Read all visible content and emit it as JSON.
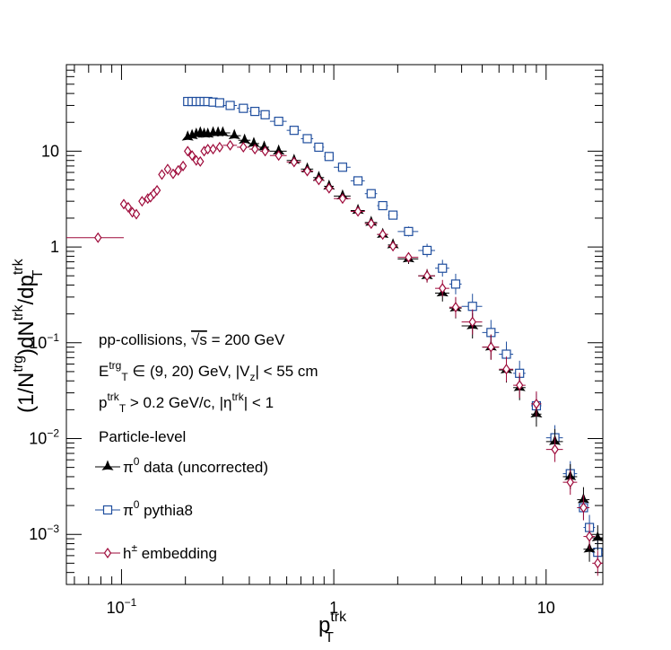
{
  "chart_data": {
    "type": "scatter",
    "xscale": "log",
    "yscale": "log",
    "xlim": [
      0.055,
      18.5
    ],
    "ylim": [
      0.0003,
      80
    ],
    "x_tick_labels": [
      {
        "value": 0.1,
        "base": "10",
        "exp": "−1"
      },
      {
        "value": 1,
        "text": "1"
      },
      {
        "value": 10,
        "text": "10"
      }
    ],
    "y_tick_labels": [
      {
        "value": 0.001,
        "base": "10",
        "exp": "−3"
      },
      {
        "value": 0.01,
        "base": "10",
        "exp": "−2"
      },
      {
        "value": 0.1,
        "base": "10",
        "exp": "−1"
      },
      {
        "value": 1,
        "text": "1"
      },
      {
        "value": 10,
        "text": "10"
      }
    ],
    "xlabel": {
      "base": "p",
      "sup": "trk",
      "sub": "T"
    },
    "ylabel": {
      "part1": "(1/N",
      "sup1": "trg",
      "part2": ")dN",
      "sup2": "trk",
      "part3": "/dp",
      "sup3": "trk",
      "sub3": "T"
    },
    "annotations": [
      {
        "segments": [
          {
            "t": "pp-collisions, "
          },
          {
            "t": "√s",
            "overline": true
          },
          {
            "t": " = 200 GeV"
          }
        ]
      },
      {
        "segments": [
          {
            "t": "E"
          },
          {
            "t": "trg",
            "sup": true
          },
          {
            "t": "T",
            "sub": true
          },
          {
            "t": " ∈ (9, 20) GeV, |V"
          },
          {
            "t": "z",
            "sub": true
          },
          {
            "t": "| < 55 cm"
          }
        ]
      },
      {
        "segments": [
          {
            "t": "p"
          },
          {
            "t": "trk",
            "sup": true
          },
          {
            "t": "T",
            "sub": true
          },
          {
            "t": " > 0.2 GeV/c, |η"
          },
          {
            "t": "trk",
            "sup": true
          },
          {
            "t": "| < 1"
          }
        ]
      },
      {
        "segments": [
          {
            "t": "Particle-level"
          }
        ]
      }
    ],
    "series": [
      {
        "name": "π0 data (uncorrected)",
        "legend": {
          "base": "π",
          "sup": "0",
          "rest": " data (uncorrected)"
        },
        "marker": "star",
        "color": "#000000",
        "x": [
          0.205,
          0.215,
          0.225,
          0.235,
          0.245,
          0.255,
          0.27,
          0.285,
          0.3,
          0.34,
          0.38,
          0.42,
          0.47,
          0.55,
          0.65,
          0.75,
          0.85,
          0.95,
          1.1,
          1.3,
          1.5,
          1.7,
          1.9,
          2.25,
          2.75,
          3.25,
          3.75,
          4.5,
          5.5,
          6.5,
          7.5,
          9.0,
          11.0,
          13.0,
          15.0,
          16.0,
          17.5
        ],
        "y": [
          14.0,
          14.5,
          15.0,
          15.5,
          15.0,
          15.0,
          15.5,
          15.5,
          15.5,
          14.5,
          13.0,
          12.0,
          11.0,
          10.0,
          8.0,
          6.5,
          5.3,
          4.3,
          3.4,
          2.4,
          1.8,
          1.35,
          1.05,
          0.75,
          0.5,
          0.33,
          0.23,
          0.15,
          0.09,
          0.052,
          0.034,
          0.018,
          0.0093,
          0.004,
          0.0023,
          0.0007,
          0.00092
        ]
      },
      {
        "name": "π0 pythia8",
        "legend": {
          "base": "π",
          "sup": "0",
          "rest": " pythia8"
        },
        "marker": "open-square",
        "color": "#1f4e9e",
        "x": [
          0.205,
          0.215,
          0.225,
          0.235,
          0.245,
          0.255,
          0.27,
          0.29,
          0.325,
          0.375,
          0.425,
          0.475,
          0.55,
          0.65,
          0.75,
          0.85,
          0.95,
          1.1,
          1.3,
          1.5,
          1.7,
          1.9,
          2.25,
          2.75,
          3.25,
          3.75,
          4.5,
          5.5,
          6.5,
          7.5,
          9.0,
          11.0,
          13.0,
          15.0,
          16.0,
          17.5
        ],
        "y": [
          33,
          33,
          33,
          33,
          33,
          33,
          32.5,
          32,
          30,
          28,
          26,
          24,
          20.5,
          16.5,
          13.5,
          11.0,
          8.8,
          6.8,
          4.9,
          3.6,
          2.7,
          2.15,
          1.45,
          0.92,
          0.6,
          0.41,
          0.24,
          0.128,
          0.076,
          0.048,
          0.022,
          0.0102,
          0.0043,
          0.0019,
          0.00118,
          0.00065
        ]
      },
      {
        "name": "h± embedding",
        "legend": {
          "base": "h",
          "sup": "±",
          "rest": " embedding"
        },
        "marker": "open-diamond",
        "color": "#9e0a3a",
        "x": [
          0.0775,
          0.1025,
          0.1075,
          0.1125,
          0.1175,
          0.125,
          0.133,
          0.137,
          0.142,
          0.147,
          0.155,
          0.165,
          0.175,
          0.185,
          0.195,
          0.205,
          0.215,
          0.225,
          0.235,
          0.245,
          0.255,
          0.27,
          0.29,
          0.325,
          0.375,
          0.425,
          0.475,
          0.55,
          0.65,
          0.75,
          0.85,
          0.95,
          1.1,
          1.3,
          1.5,
          1.7,
          1.9,
          2.25,
          2.75,
          3.25,
          3.75,
          4.5,
          5.5,
          6.5,
          7.5,
          9.0,
          11.0,
          13.0,
          15.0,
          16.0,
          17.5
        ],
        "y": [
          1.25,
          2.8,
          2.6,
          2.3,
          2.2,
          3.0,
          3.2,
          3.3,
          3.6,
          3.9,
          5.7,
          6.5,
          5.8,
          6.3,
          7.0,
          10.0,
          9.0,
          8.0,
          7.8,
          10.0,
          10.5,
          10.5,
          11.0,
          11.5,
          11.0,
          10.5,
          10.0,
          9.0,
          7.7,
          6.2,
          5.0,
          4.1,
          3.2,
          2.35,
          1.75,
          1.35,
          1.02,
          0.78,
          0.5,
          0.37,
          0.235,
          0.165,
          0.09,
          0.053,
          0.036,
          0.023,
          0.0077,
          0.0035,
          0.0019,
          0.00095,
          0.0005
        ]
      }
    ]
  }
}
